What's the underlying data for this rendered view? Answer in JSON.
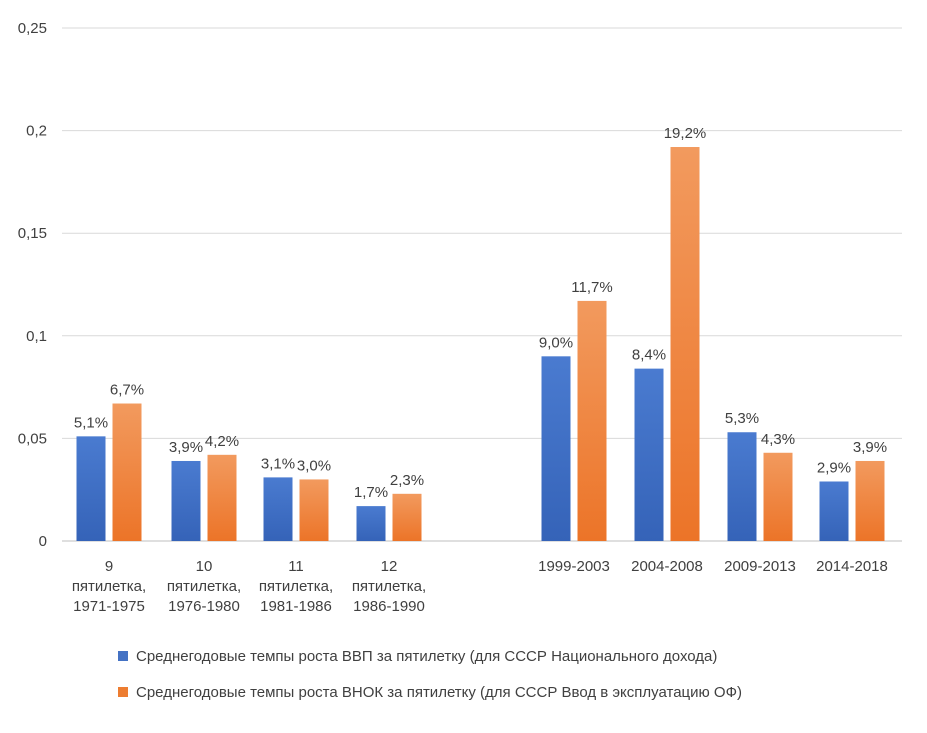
{
  "chart_data": {
    "type": "bar",
    "title": "",
    "xlabel": "",
    "ylabel": "",
    "ylim": [
      0,
      0.25
    ],
    "y_ticks": [
      "0",
      "0,05",
      "0,1",
      "0,15",
      "0,2",
      "0,25"
    ],
    "y_tick_values": [
      0,
      0.05,
      0.1,
      0.15,
      0.2,
      0.25
    ],
    "grid": true,
    "legend_position": "bottom",
    "categories": [
      [
        "9",
        "пятилетка,",
        "1971-1975"
      ],
      [
        "10",
        "пятилетка,",
        "1976-1980"
      ],
      [
        "11",
        "пятилетка,",
        "1981-1986"
      ],
      [
        "12",
        "пятилетка,",
        "1986-1990"
      ],
      [],
      [
        "1999-2003"
      ],
      [
        "2004-2008"
      ],
      [
        "2009-2013"
      ],
      [
        "2014-2018"
      ]
    ],
    "series": [
      {
        "name": "Среднегодовые темпы роста ВВП за пятилетку (для СССР Национального дохода)",
        "color": "#4472C4",
        "values": [
          0.051,
          0.039,
          0.031,
          0.017,
          null,
          0.09,
          0.084,
          0.053,
          0.029
        ],
        "labels": [
          "5,1%",
          "3,9%",
          "3,1%",
          "1,7%",
          "",
          "9,0%",
          "8,4%",
          "5,3%",
          "2,9%"
        ]
      },
      {
        "name": "Среднегодовые темпы роста ВНОК за пятилетку (для СССР Ввод в эксплуатацию ОФ)",
        "color": "#ED7D31",
        "values": [
          0.067,
          0.042,
          0.03,
          0.023,
          null,
          0.117,
          0.192,
          0.043,
          0.039
        ],
        "labels": [
          "6,7%",
          "4,2%",
          "3,0%",
          "2,3%",
          "",
          "11,7%",
          "19,2%",
          "4,3%",
          "3,9%"
        ]
      }
    ]
  }
}
